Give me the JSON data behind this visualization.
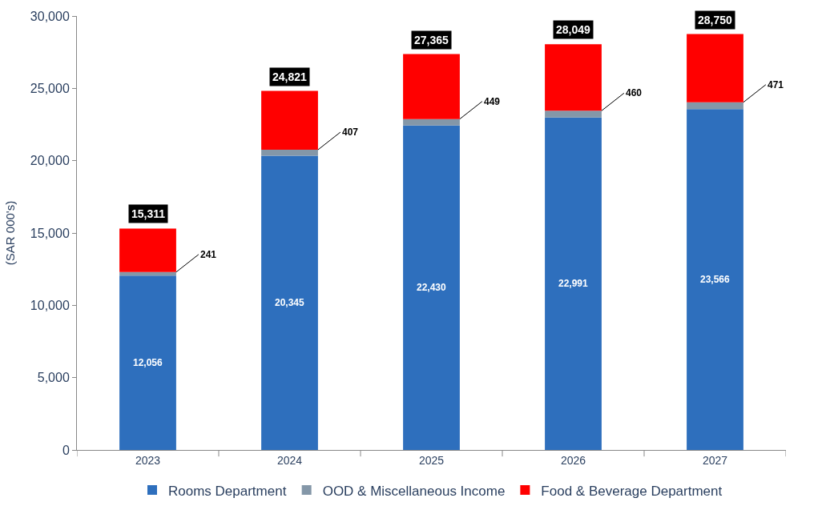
{
  "chart_data": {
    "type": "bar",
    "stacked": true,
    "ylabel": "(SAR 000's)",
    "categories": [
      "2023",
      "2024",
      "2025",
      "2026",
      "2027"
    ],
    "series": [
      {
        "name": "Rooms Department",
        "color": "#2e6fbd",
        "values": [
          12056,
          20345,
          22430,
          22991,
          23566
        ],
        "value_labels": [
          "12,056",
          "20,345",
          "22,430",
          "22,991",
          "23,566"
        ]
      },
      {
        "name": "OOD & Miscellaneous Income",
        "color": "#8497a8",
        "values": [
          241,
          407,
          449,
          460,
          471
        ],
        "value_labels": [
          "241",
          "407",
          "449",
          "460",
          "471"
        ]
      },
      {
        "name": "Food & Beverage Department",
        "color": "#ff0000",
        "values": [
          3014,
          4069,
          4486,
          4598,
          4713
        ]
      }
    ],
    "totals": [
      "15,311",
      "24,821",
      "27,365",
      "28,049",
      "28,750"
    ],
    "ylim": [
      0,
      30000
    ],
    "yticks": [
      {
        "value": 0,
        "label": "0"
      },
      {
        "value": 5000,
        "label": "5,000"
      },
      {
        "value": 10000,
        "label": "10,000"
      },
      {
        "value": 15000,
        "label": "15,000"
      },
      {
        "value": 20000,
        "label": "20,000"
      },
      {
        "value": 25000,
        "label": "25,000"
      },
      {
        "value": 30000,
        "label": "30,000"
      }
    ],
    "legend": "bottom"
  }
}
